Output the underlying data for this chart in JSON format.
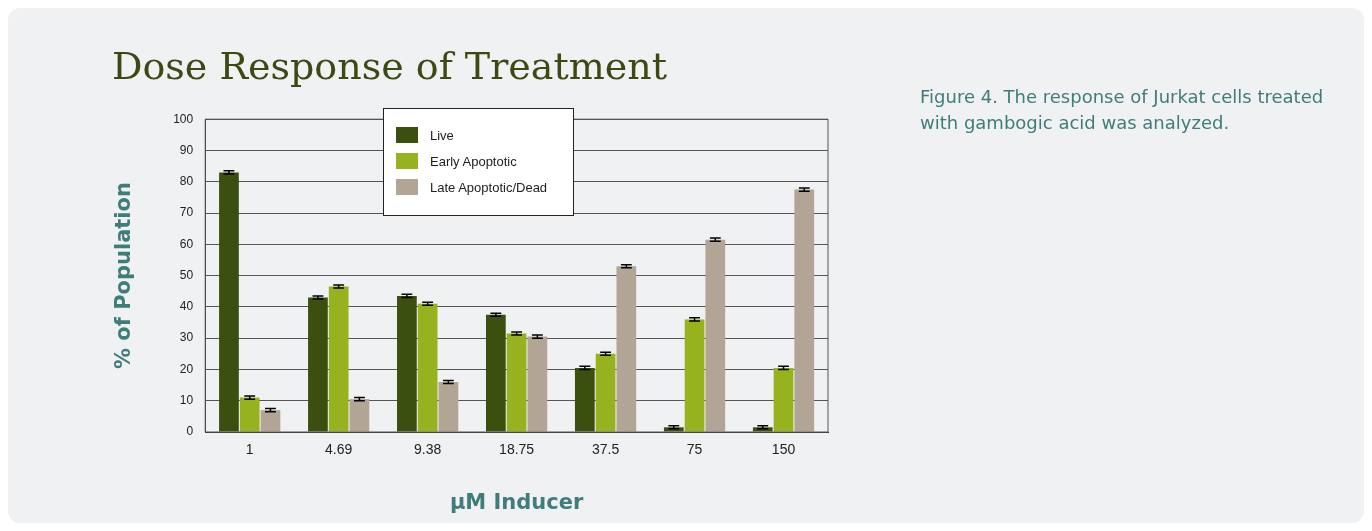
{
  "chart_data": {
    "type": "bar",
    "title": "Dose Response of Treatment",
    "xlabel": "µM Inducer",
    "ylabel": "% of Population",
    "annotations": [
      "Figure 4. The response of Jurkat cells treated with gambogic acid was analyzed."
    ],
    "categories": [
      "1",
      "4.69",
      "9.38",
      "18.75",
      "37.5",
      "75",
      "150"
    ],
    "series": [
      {
        "name": "Live",
        "color": "#3b4f0f",
        "values": [
          83,
          43,
          43.5,
          37.5,
          20.5,
          1.5,
          1.5
        ],
        "errors": [
          0.5,
          0.5,
          0.5,
          0.5,
          0.5,
          0.5,
          0.5
        ]
      },
      {
        "name": "Early Apoptotic",
        "color": "#96b21e",
        "values": [
          11,
          46.5,
          41,
          31.5,
          25,
          36,
          20.5
        ],
        "errors": [
          0.5,
          0.5,
          0.5,
          0.5,
          0.5,
          0.5,
          0.5
        ]
      },
      {
        "name": "Late Apoptotic/Dead",
        "color": "#b2a595",
        "values": [
          7,
          10.5,
          16,
          30.5,
          53,
          61.5,
          77.5
        ],
        "errors": [
          0.5,
          0.5,
          0.5,
          0.5,
          0.5,
          0.5,
          0.5
        ]
      }
    ],
    "ylim": [
      0,
      100
    ],
    "yticks": [
      0,
      10,
      20,
      30,
      40,
      50,
      60,
      70,
      80,
      90,
      100
    ],
    "grid": "y",
    "legend": "top"
  }
}
